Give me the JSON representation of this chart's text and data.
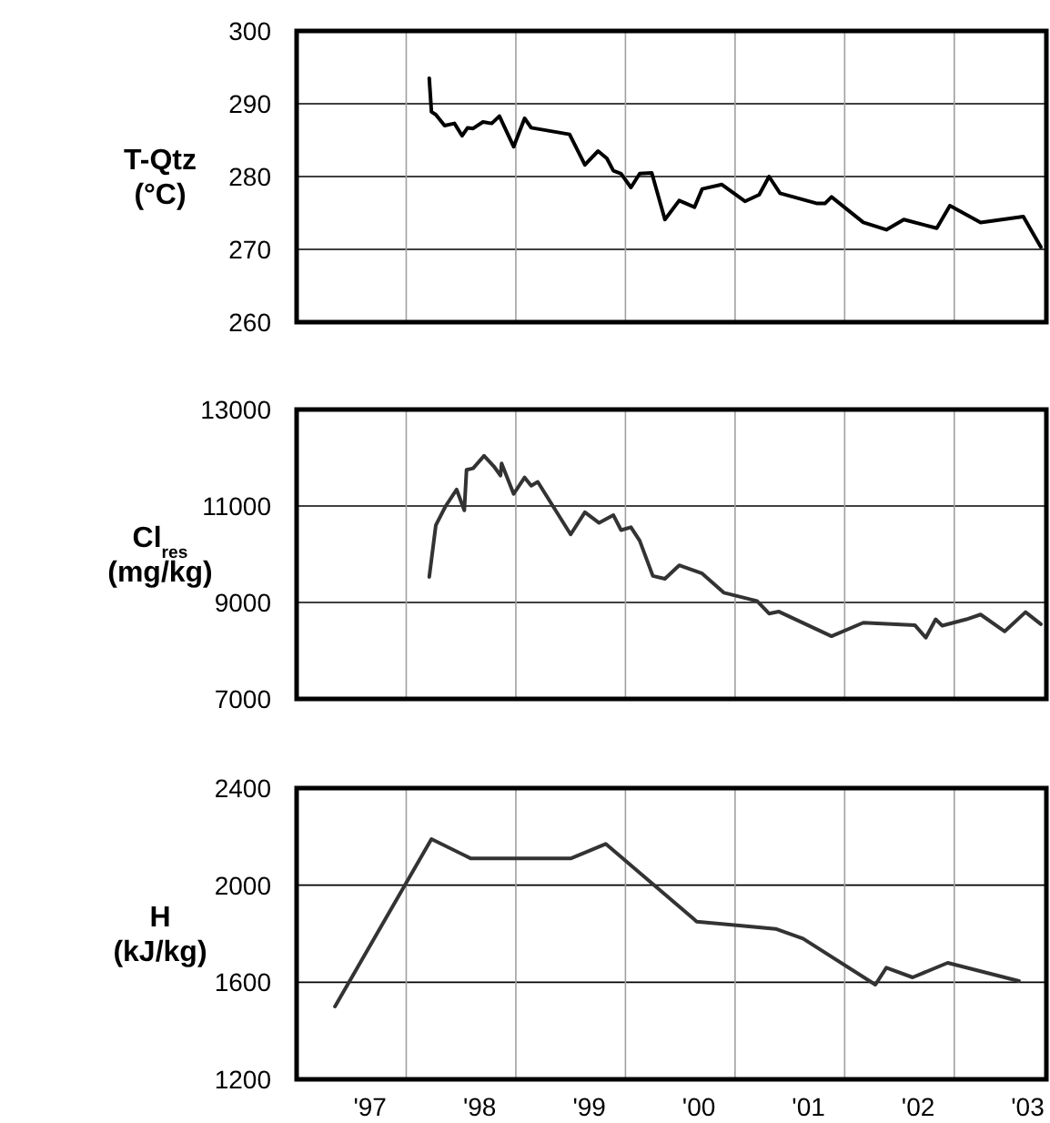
{
  "chart_data": [
    {
      "type": "line",
      "ylabel": "T-Qtz\n(°C)",
      "xlim": [
        1996.33,
        2003.17
      ],
      "ylim": [
        260,
        300
      ],
      "yticks": [
        260,
        270,
        280,
        290,
        300
      ],
      "grid": true,
      "tick_labels": "y",
      "xticks": [
        {
          "value": 1997.33,
          "label": null
        },
        {
          "value": 1998.33,
          "label": null
        },
        {
          "value": 1999.33,
          "label": null
        },
        {
          "value": 2000.33,
          "label": null
        },
        {
          "value": 2001.33,
          "label": null
        },
        {
          "value": 2002.33,
          "label": null
        }
      ],
      "x": [
        1997.54,
        1997.56,
        1997.6,
        1997.68,
        1997.77,
        1997.84,
        1997.89,
        1997.94,
        1998.03,
        1998.11,
        1998.18,
        1998.31,
        1998.41,
        1998.47,
        1998.82,
        1998.96,
        1999.08,
        1999.16,
        1999.22,
        1999.29,
        1999.38,
        1999.46,
        1999.57,
        1999.69,
        1999.82,
        1999.96,
        2000.03,
        2000.21,
        2000.42,
        2000.55,
        2000.64,
        2000.74,
        2001.08,
        2001.15,
        2001.21,
        2001.5,
        2001.71,
        2001.87,
        2002.17,
        2002.29,
        2002.57,
        2002.96,
        2003.12
      ],
      "series": [
        {
          "color": "#000000",
          "values": [
            293.5,
            288.9,
            288.5,
            287,
            287.3,
            285.6,
            286.7,
            286.6,
            287.5,
            287.3,
            288.3,
            284.1,
            288,
            286.7,
            285.8,
            281.6,
            283.5,
            282.5,
            280.8,
            280.4,
            278.5,
            280.4,
            280.5,
            274.1,
            276.7,
            275.8,
            278.3,
            278.9,
            276.6,
            277.5,
            280,
            277.7,
            276.3,
            276.3,
            277.2,
            273.7,
            272.7,
            274.1,
            272.9,
            276,
            273.7,
            274.5,
            270.3
          ]
        }
      ]
    },
    {
      "type": "line",
      "ylabel": "Cl$_{res}$\n(mg/kg)",
      "xlim": [
        1996.33,
        2003.17
      ],
      "ylim": [
        7000,
        13000
      ],
      "yticks": [
        7000,
        9000,
        11000,
        13000
      ],
      "grid": true,
      "tick_labels": "y",
      "xticks": [
        {
          "value": 1997.33,
          "label": null
        },
        {
          "value": 1998.33,
          "label": null
        },
        {
          "value": 1999.33,
          "label": null
        },
        {
          "value": 2000.33,
          "label": null
        },
        {
          "value": 2001.33,
          "label": null
        },
        {
          "value": 2002.33,
          "label": null
        }
      ],
      "x": [
        1997.54,
        1997.6,
        1997.69,
        1997.79,
        1997.86,
        1997.88,
        1997.94,
        1998.04,
        1998.13,
        1998.19,
        1998.2,
        1998.31,
        1998.41,
        1998.47,
        1998.53,
        1998.83,
        1998.96,
        1999.09,
        1999.22,
        1999.29,
        1999.38,
        1999.46,
        1999.58,
        1999.69,
        1999.82,
        2000.03,
        2000.23,
        2000.53,
        2000.64,
        2000.73,
        2001.21,
        2001.5,
        2001.97,
        2002.07,
        2002.16,
        2002.22,
        2002.44,
        2002.57,
        2002.79,
        2002.98,
        2003.12
      ],
      "series": [
        {
          "color": "#333333",
          "values": [
            9530,
            10600,
            11000,
            11340,
            10910,
            11750,
            11780,
            12040,
            11820,
            11630,
            11880,
            11250,
            11590,
            11420,
            11500,
            10410,
            10870,
            10650,
            10810,
            10500,
            10560,
            10280,
            9550,
            9490,
            9770,
            9600,
            9200,
            9030,
            8770,
            8810,
            8300,
            8580,
            8530,
            8270,
            8650,
            8520,
            8650,
            8750,
            8400,
            8800,
            8550
          ]
        }
      ]
    },
    {
      "type": "line",
      "ylabel": "H\n(kJ/kg)",
      "xlim": [
        1996.33,
        2003.17
      ],
      "ylim": [
        1200,
        2400
      ],
      "yticks": [
        1200,
        1600,
        2000,
        2400
      ],
      "grid": true,
      "xticks": [
        {
          "value": 1997,
          "label": "'97"
        },
        {
          "value": 1998,
          "label": "'98"
        },
        {
          "value": 1999,
          "label": "'99"
        },
        {
          "value": 2000,
          "label": "'00"
        },
        {
          "value": 2001,
          "label": "'01"
        },
        {
          "value": 2002,
          "label": "'02"
        },
        {
          "value": 2003,
          "label": "'03"
        },
        {
          "value": 1997.33,
          "label": null
        },
        {
          "value": 1998.33,
          "label": null
        },
        {
          "value": 1999.33,
          "label": null
        },
        {
          "value": 2000.33,
          "label": null
        },
        {
          "value": 2001.33,
          "label": null
        },
        {
          "value": 2002.33,
          "label": null
        }
      ],
      "x": [
        1996.68,
        1997.56,
        1997.92,
        1998.83,
        1999.15,
        1999.98,
        2000.7,
        2000.95,
        2001.61,
        2001.71,
        2001.95,
        2002.27,
        2002.92
      ],
      "series": [
        {
          "color": "#333333",
          "values": [
            1500,
            2190,
            2110,
            2110,
            2170,
            1850,
            1820,
            1780,
            1590,
            1660,
            1620,
            1680,
            1605
          ]
        }
      ]
    }
  ]
}
